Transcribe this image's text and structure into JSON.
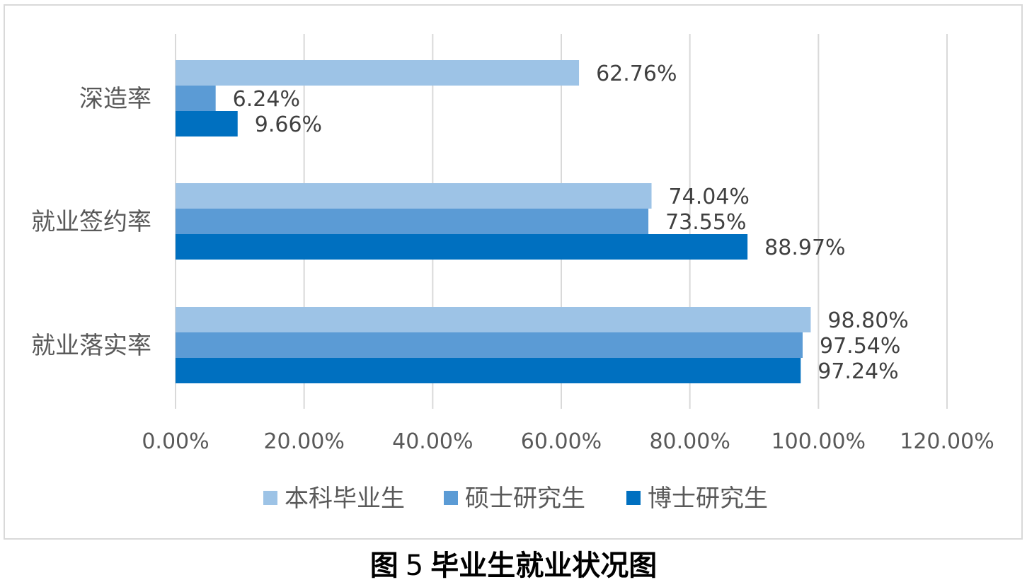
{
  "chart_data": {
    "type": "bar",
    "orientation": "horizontal",
    "categories": [
      "深造率",
      "就业签约率",
      "就业落实率"
    ],
    "series": [
      {
        "name": "本科毕业生",
        "values": [
          62.76,
          74.04,
          98.8
        ],
        "labels": [
          "62.76%",
          "74.04%",
          "98.80%"
        ],
        "color": "#9dc3e6"
      },
      {
        "name": "硕士研究生",
        "values": [
          6.24,
          73.55,
          97.54
        ],
        "labels": [
          "6.24%",
          "73.55%",
          "97.54%"
        ],
        "color": "#5b9bd5"
      },
      {
        "name": "博士研究生",
        "values": [
          9.66,
          88.97,
          97.24
        ],
        "labels": [
          "9.66%",
          "88.97%",
          "97.24%"
        ],
        "color": "#0070c0"
      }
    ],
    "xlim": [
      0,
      120
    ],
    "xticks": [
      0,
      20,
      40,
      60,
      80,
      100,
      120
    ],
    "xtick_labels": [
      "0.00%",
      "20.00%",
      "40.00%",
      "60.00%",
      "80.00%",
      "100.00%",
      "120.00%"
    ],
    "grid": "vertical",
    "legend": "bottom"
  },
  "caption": {
    "prefix": "图",
    "number": "5",
    "text": "毕业生就业状况图"
  }
}
